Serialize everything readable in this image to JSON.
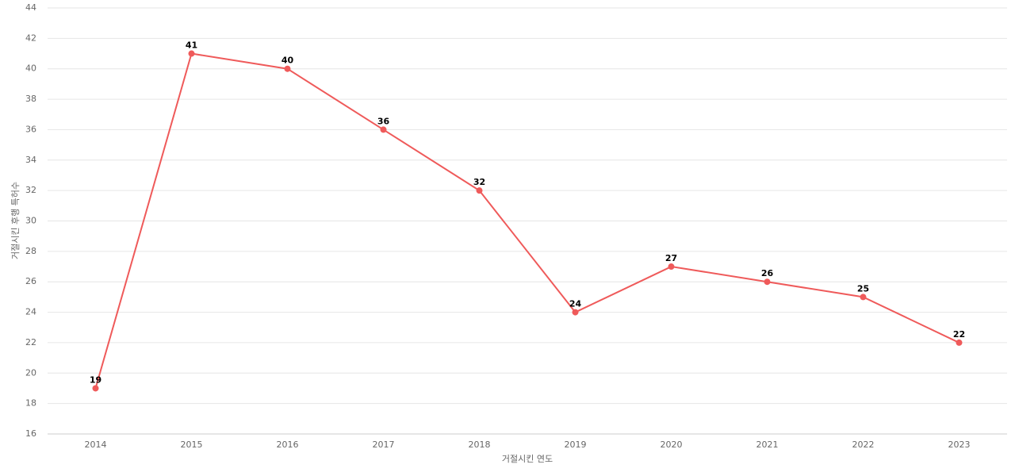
{
  "chart_data": {
    "type": "line",
    "x_label": "거절시킨 연도",
    "y_label": "거절시킨 후행 특허수",
    "categories": [
      "2014",
      "2015",
      "2016",
      "2017",
      "2018",
      "2019",
      "2020",
      "2021",
      "2022",
      "2023"
    ],
    "series": [
      {
        "name": "거절시킨 후행 특허수",
        "color": "#ef5a5a",
        "values": [
          19,
          41,
          40,
          36,
          32,
          24,
          27,
          26,
          25,
          22
        ]
      }
    ],
    "ylim": [
      16,
      44
    ],
    "yticks": [
      16,
      18,
      20,
      22,
      24,
      26,
      28,
      30,
      32,
      34,
      36,
      38,
      40,
      42,
      44
    ],
    "grid": true
  }
}
